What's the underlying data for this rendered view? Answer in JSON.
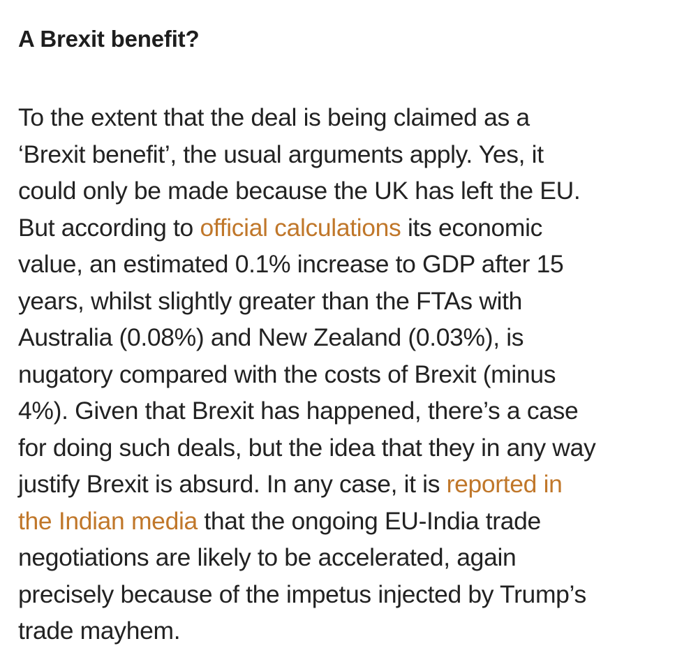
{
  "article": {
    "heading": "A Brexit benefit?",
    "paragraph": {
      "lines": [
        "To the extent that the deal is being claimed as a",
        "‘Brexit benefit’, the usual arguments apply. Yes, it",
        "could only be made because the UK has left the EU.",
        "But according to ",
        " its economic",
        "value, an estimated 0.1% increase to GDP after 15",
        "years, whilst slightly greater than the FTAs with",
        "Australia (0.08%) and New Zealand (0.03%), is",
        "nugatory compared with the costs of Brexit (minus",
        "4%). Given that Brexit has happened, there’s a case",
        "for doing such deals, but the idea that they in any way",
        "justify Brexit is absurd. In any case, it is ",
        " that the ongoing EU-India trade",
        "negotiations are likely to be accelerated, again",
        "precisely because of the impetus injected by Trump’s",
        "trade mayhem."
      ],
      "links": {
        "official_calculations": "official calculations",
        "reported_line1": "reported in",
        "reported_line2": "the Indian media"
      }
    },
    "link_color": "#c0772a",
    "text_color": "#222222"
  }
}
